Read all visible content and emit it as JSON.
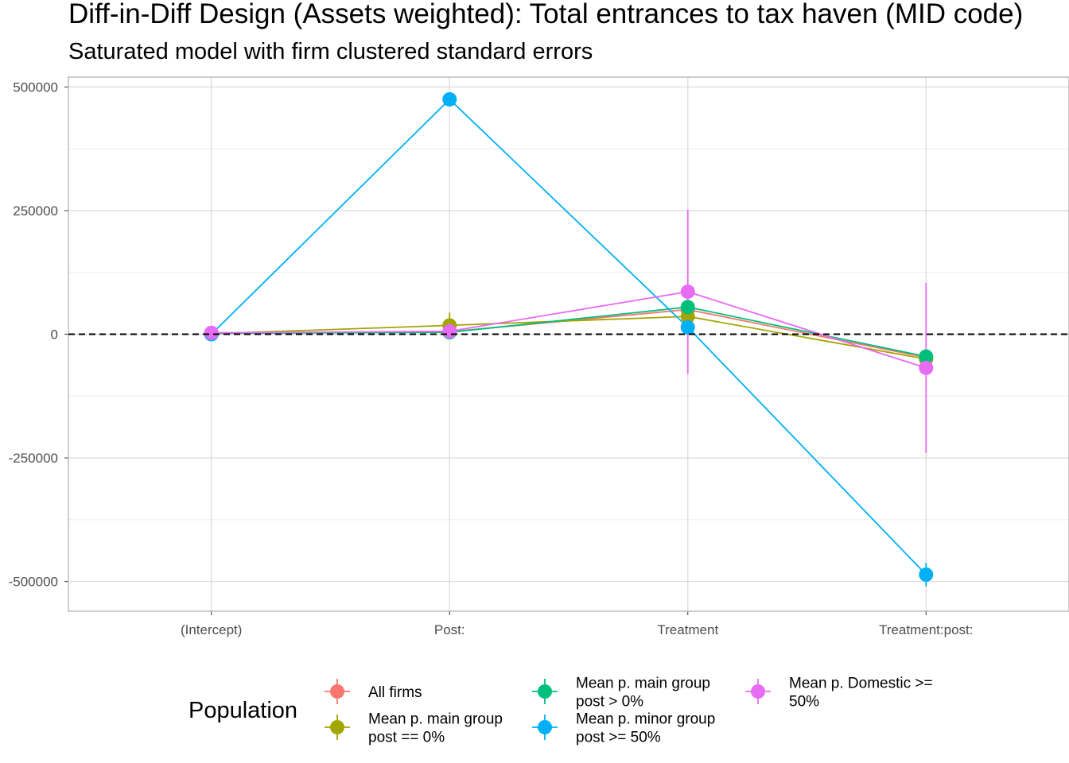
{
  "chart_data": {
    "type": "line",
    "title": "Diff-in-Diff Design (Assets weighted): Total entrances to tax haven (MID code)",
    "subtitle": "Saturated model with firm clustered standard errors",
    "xlabel": "",
    "ylabel": "",
    "categories": [
      "(Intercept)",
      "Post:",
      "Treatment",
      "Treatment:post:"
    ],
    "ylim": [
      -560000,
      520000
    ],
    "yticks": [
      500000,
      250000,
      0,
      -250000,
      -500000
    ],
    "ytick_labels": [
      "500000",
      "250000",
      "0",
      "-250000",
      "-500000"
    ],
    "reference_line": 0,
    "grid": true,
    "legend": {
      "title": "Population",
      "position": "bottom"
    },
    "series": [
      {
        "name": "All firms",
        "color": "#F8766D",
        "values": [
          2000,
          5000,
          50000,
          -47000
        ],
        "ci_low": [
          -1000,
          0,
          38000,
          -60000
        ],
        "ci_high": [
          5000,
          10000,
          62000,
          -34000
        ]
      },
      {
        "name": "Mean p. main group post == 0%",
        "color": "#A3A500",
        "values": [
          1000,
          18000,
          36000,
          -50000
        ],
        "ci_low": [
          -2000,
          -8000,
          20000,
          -62000
        ],
        "ci_high": [
          4000,
          44000,
          52000,
          -38000
        ]
      },
      {
        "name": "Mean p. main group post > 0%",
        "color": "#00BF7D",
        "values": [
          2000,
          4000,
          55000,
          -45000
        ],
        "ci_low": [
          -1000,
          -2000,
          40000,
          -58000
        ],
        "ci_high": [
          5000,
          10000,
          70000,
          -32000
        ]
      },
      {
        "name": "Mean p. minor group post >= 50%",
        "color": "#00B0F6",
        "values": [
          0,
          475000,
          14000,
          -486000
        ],
        "ci_low": [
          -3000,
          468000,
          0,
          -510000
        ],
        "ci_high": [
          3000,
          482000,
          28000,
          -462000
        ]
      },
      {
        "name": "Mean p. Domestic >= 50%",
        "color": "#E76BF3",
        "values": [
          3000,
          6000,
          86000,
          -68000
        ],
        "ci_low": [
          -2000,
          0,
          -80000,
          -240000
        ],
        "ci_high": [
          8000,
          12000,
          252000,
          104000
        ]
      }
    ]
  }
}
